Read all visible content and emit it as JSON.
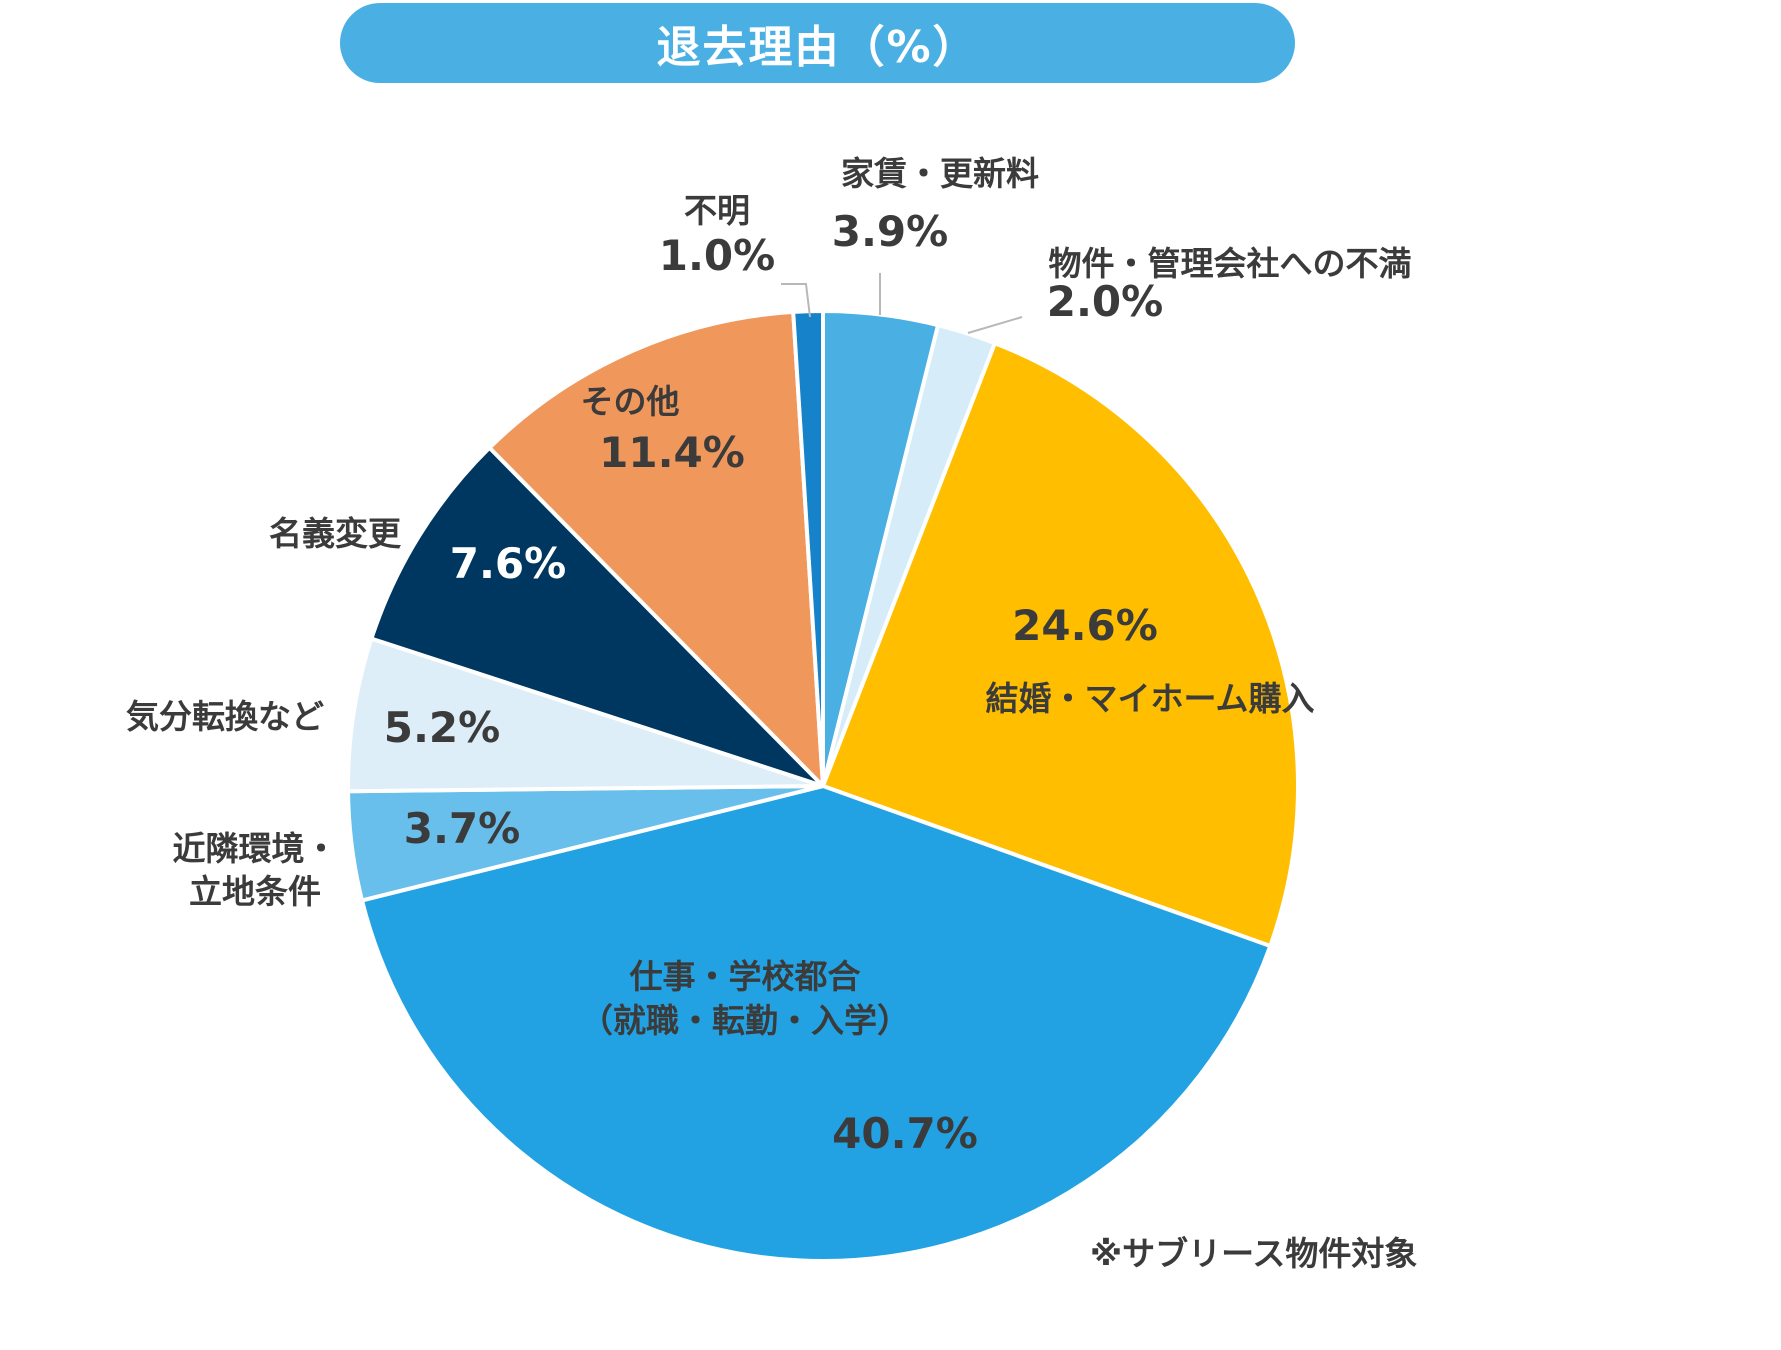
{
  "title": "退去理由（%）",
  "footnote": "※サブリース物件対象",
  "colors": {
    "title_bg": "#4ab0e4",
    "text": "#3b3b3b"
  },
  "chart_data": {
    "type": "pie",
    "unit": "%",
    "start": "12 o'clock",
    "direction": "clockwise",
    "slices": [
      {
        "label": "家賃・更新料",
        "value": 3.9,
        "value_label": "3.9%",
        "color": "#4ab0e4"
      },
      {
        "label": "物件・管理会社への不満",
        "value": 2.0,
        "value_label": "2.0%",
        "color": "#d6ecf9"
      },
      {
        "label": "結婚・マイホーム購入",
        "value": 24.6,
        "value_label": "24.6%",
        "color": "#ffbe00"
      },
      {
        "label": "仕事・学校都合\n（就職・転勤・入学）",
        "value": 40.7,
        "value_label": "40.7%",
        "color": "#22a2e2"
      },
      {
        "label": "近隣環境・\n立地条件",
        "value": 3.7,
        "value_label": "3.7%",
        "color": "#69bfeb"
      },
      {
        "label": "気分転換など",
        "value": 5.2,
        "value_label": "5.2%",
        "color": "#ddeef9"
      },
      {
        "label": "名義変更",
        "value": 7.6,
        "value_label": "7.6%",
        "color": "#003760"
      },
      {
        "label": "その他",
        "value": 11.4,
        "value_label": "11.4%",
        "color": "#f0975c"
      },
      {
        "label": "不明",
        "value": 1.0,
        "value_label": "1.0%",
        "color": "#1582c9"
      }
    ]
  }
}
